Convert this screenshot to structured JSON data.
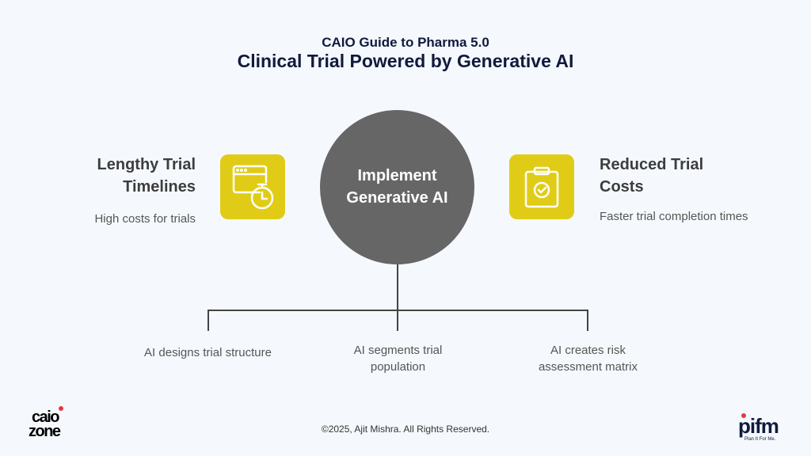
{
  "header": {
    "supertitle": "CAIO Guide to Pharma 5.0",
    "title": "Clinical Trial Powered by Generative AI"
  },
  "center": {
    "label": "Implement Generative AI",
    "color": "#666666"
  },
  "left": {
    "heading": "Lengthy Trial Timelines",
    "description": "High costs for trials",
    "icon": "browser-stopwatch-icon",
    "color": "#e0cc16"
  },
  "right": {
    "heading": "Reduced Trial Costs",
    "description": "Faster trial completion times",
    "icon": "clipboard-check-icon",
    "color": "#e0cc16"
  },
  "branches": [
    "AI designs trial structure",
    "AI segments trial population",
    "AI creates risk assessment matrix"
  ],
  "footer": {
    "copyright": "©2025, Ajit Mishra. All Rights Reserved.",
    "logo_left": "caio zone",
    "logo_right": "pifm",
    "logo_right_tagline": "Plan It For Me."
  }
}
